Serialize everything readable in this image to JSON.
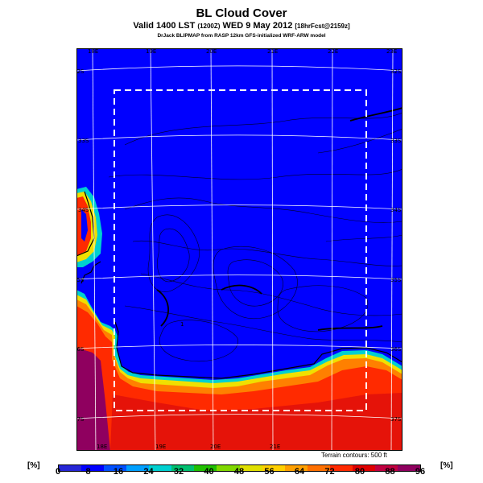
{
  "header": {
    "title": "BL Cloud Cover",
    "subtitle_main": "Valid 1400 LST",
    "subtitle_paren": "(1200Z)",
    "subtitle_date": "WED 9 May 2012",
    "subtitle_fcst": "[18hrFcst@2159z]",
    "credit": "DrJack BLIPMAP from RASP 12km GFS-initialized WRF-ARW model"
  },
  "map": {
    "lon_top": [
      "18E",
      "19E",
      "20E",
      "21E",
      "22E",
      "23E"
    ],
    "lon_bottom": [
      "18E",
      "19E",
      "20E",
      "21E"
    ],
    "lat_left": [
      "32S",
      "33S",
      "34S",
      "35S",
      "36S",
      "37S"
    ],
    "lat_right": [
      "32S",
      "33S",
      "34S",
      "35S",
      "36S",
      "37S"
    ],
    "terrain_note": "Terrain contours: 500 ft",
    "marker_label": "1",
    "colors": {
      "ocean": "#0000ff",
      "land_high_cloud": "#ff2a00",
      "frame": "#ffffff"
    }
  },
  "colorbar": {
    "unit_left": "[%]",
    "unit_right": "[%]",
    "labels": [
      "0",
      "8",
      "16",
      "24",
      "32",
      "40",
      "48",
      "56",
      "64",
      "72",
      "80",
      "88",
      "96"
    ],
    "colors": [
      "#2626d6",
      "#0000ff",
      "#0050ff",
      "#00a0ff",
      "#00d0d0",
      "#00c070",
      "#20c000",
      "#80d800",
      "#e0e000",
      "#ffd000",
      "#ffa000",
      "#ff7000",
      "#ff2a00",
      "#e00000",
      "#c00040",
      "#8f005f"
    ]
  }
}
